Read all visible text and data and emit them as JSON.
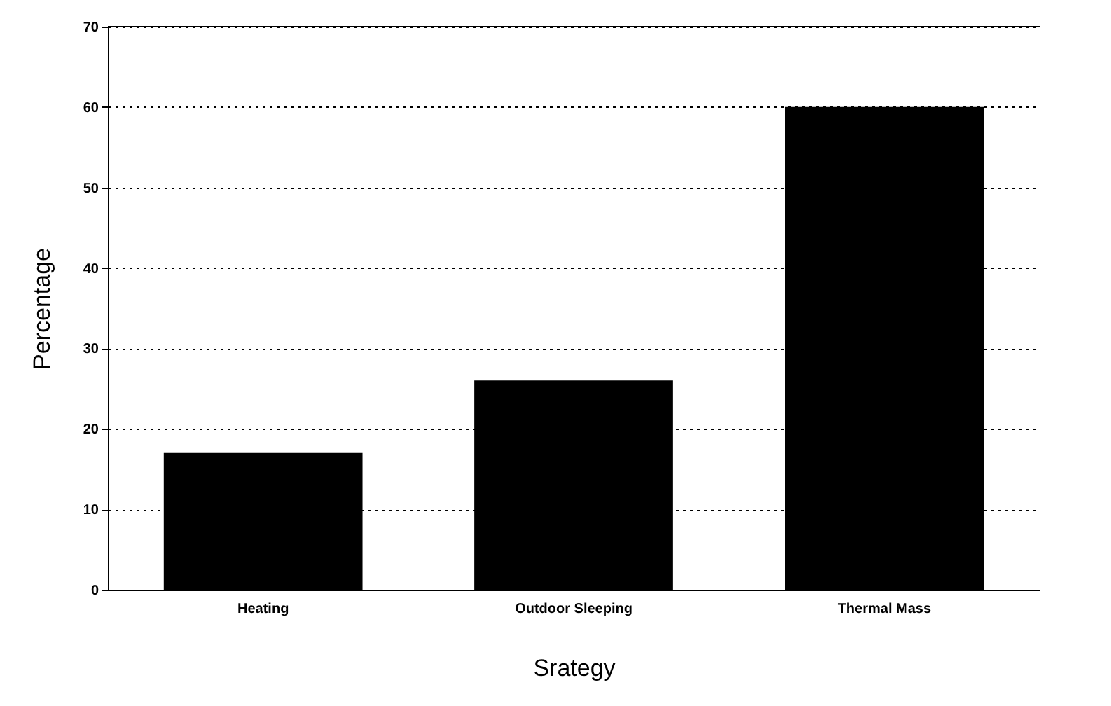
{
  "chart_data": {
    "type": "bar",
    "xlabel": "Srategy",
    "ylabel": "Percentage",
    "categories": [
      "Heating",
      "Outdoor Sleeping",
      "Thermal Mass"
    ],
    "values": [
      17,
      26,
      60
    ],
    "color": "#000000",
    "ylim": [
      0,
      70
    ],
    "yticks": [
      0,
      10,
      20,
      30,
      40,
      50,
      60,
      70
    ],
    "grid": "y"
  }
}
